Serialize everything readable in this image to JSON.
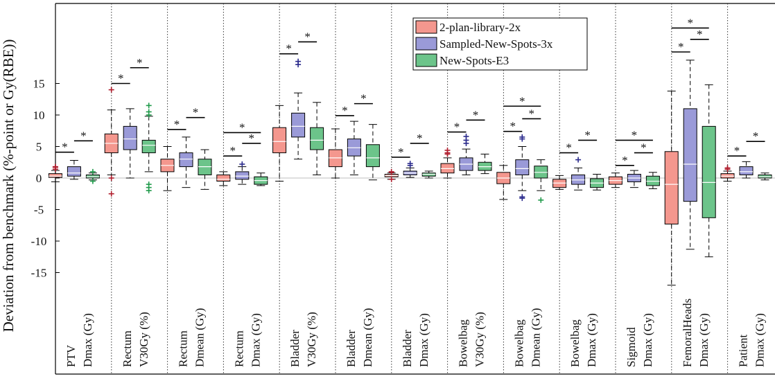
{
  "chart_data": {
    "type": "box",
    "ylabel": "Deviation from benchmark (%-point or Gy(RBE))",
    "y_ticks": [
      15,
      10,
      5,
      0,
      -5,
      -10,
      -15
    ],
    "y_tick_labels": [
      "15",
      "10",
      "5",
      "0",
      "-5",
      "-10",
      "-15"
    ],
    "ylim": [
      -23,
      25.5
    ],
    "grid": false,
    "legend_position": "top-center",
    "series": [
      {
        "name": "2-plan-library-2x",
        "color": "#f4978e"
      },
      {
        "name": "Sampled-New-Spots-3x",
        "color": "#9a9ad8"
      },
      {
        "name": "New-Spots-E3",
        "color": "#6cc48a"
      }
    ],
    "significance_marker": "*",
    "categories": [
      {
        "line1": "PTV",
        "line2": "Dmax (Gy)",
        "boxes": [
          {
            "series": 0,
            "whisker_low": -0.6,
            "q1": 0.1,
            "median": 0.3,
            "q3": 0.7,
            "whisker_high": 1.2,
            "outliers": [
              1.4,
              1.7,
              1.8
            ]
          },
          {
            "series": 1,
            "whisker_low": -0.2,
            "q1": 0.3,
            "median": 0.8,
            "q3": 1.8,
            "whisker_high": 2.8,
            "outliers": []
          },
          {
            "series": 2,
            "whisker_low": -0.3,
            "q1": 0.0,
            "median": 0.2,
            "q3": 0.5,
            "whisker_high": 0.8,
            "outliers": [
              1.0,
              -0.5
            ]
          }
        ],
        "sig": [
          {
            "from": 0,
            "to": 1,
            "y": 4.1
          },
          {
            "from": 1,
            "to": 2,
            "y": 5.9
          }
        ]
      },
      {
        "line1": "Rectum",
        "line2": "V30Gy (%)",
        "boxes": [
          {
            "series": 0,
            "whisker_low": 0.5,
            "q1": 4.0,
            "median": 5.5,
            "q3": 7.0,
            "whisker_high": 10.8,
            "outliers": [
              14.0,
              0.0,
              -2.5
            ]
          },
          {
            "series": 1,
            "whisker_low": 0.0,
            "q1": 4.5,
            "median": 6.2,
            "q3": 8.2,
            "whisker_high": 11.0,
            "outliers": []
          },
          {
            "series": 2,
            "whisker_low": 1.0,
            "q1": 4.0,
            "median": 5.2,
            "q3": 6.0,
            "whisker_high": 9.8,
            "outliers": [
              11.5,
              10.5,
              10.0,
              -1.0,
              -1.5,
              -2.0
            ]
          }
        ],
        "sig": [
          {
            "from": 0,
            "to": 1,
            "y": 15.0
          },
          {
            "from": 1,
            "to": 2,
            "y": 17.5
          }
        ]
      },
      {
        "line1": "Rectum",
        "line2": "Dmean (Gy)",
        "boxes": [
          {
            "series": 0,
            "whisker_low": -2.0,
            "q1": 1.0,
            "median": 2.0,
            "q3": 3.0,
            "whisker_high": 5.0,
            "outliers": []
          },
          {
            "series": 1,
            "whisker_low": -1.5,
            "q1": 1.8,
            "median": 3.0,
            "q3": 4.0,
            "whisker_high": 6.5,
            "outliers": []
          },
          {
            "series": 2,
            "whisker_low": -1.8,
            "q1": 0.5,
            "median": 1.8,
            "q3": 3.0,
            "whisker_high": 4.5,
            "outliers": []
          }
        ],
        "sig": [
          {
            "from": 0,
            "to": 1,
            "y": 7.7
          },
          {
            "from": 1,
            "to": 2,
            "y": 9.6
          }
        ]
      },
      {
        "line1": "Rectum",
        "line2": "Dmax (Gy)",
        "boxes": [
          {
            "series": 0,
            "whisker_low": -1.2,
            "q1": -0.5,
            "median": -0.2,
            "q3": 0.5,
            "whisker_high": 1.0,
            "outliers": []
          },
          {
            "series": 1,
            "whisker_low": -1.0,
            "q1": -0.2,
            "median": 0.3,
            "q3": 1.0,
            "whisker_high": 1.8,
            "outliers": [
              2.2
            ]
          },
          {
            "series": 2,
            "whisker_low": -1.2,
            "q1": -1.0,
            "median": -0.4,
            "q3": 0.2,
            "whisker_high": 0.8,
            "outliers": []
          }
        ],
        "sig": [
          {
            "from": 0,
            "to": 1,
            "y": 3.5
          },
          {
            "from": 1,
            "to": 2,
            "y": 5.5
          },
          {
            "from": 0,
            "to": 2,
            "y": 7.2
          }
        ]
      },
      {
        "line1": "Bladder",
        "line2": "V30Gy (%)",
        "boxes": [
          {
            "series": 0,
            "whisker_low": -0.5,
            "q1": 4.0,
            "median": 5.8,
            "q3": 8.0,
            "whisker_high": 11.5,
            "outliers": []
          },
          {
            "series": 1,
            "whisker_low": 3.0,
            "q1": 6.5,
            "median": 8.2,
            "q3": 10.3,
            "whisker_high": 13.5,
            "outliers": [
              18.0,
              18.5
            ]
          },
          {
            "series": 2,
            "whisker_low": 0.5,
            "q1": 4.5,
            "median": 6.0,
            "q3": 8.0,
            "whisker_high": 12.0,
            "outliers": []
          }
        ],
        "sig": [
          {
            "from": 0,
            "to": 1,
            "y": 19.7
          },
          {
            "from": 1,
            "to": 2,
            "y": 21.6
          }
        ]
      },
      {
        "line1": "Bladder",
        "line2": "Dmean (Gy)",
        "boxes": [
          {
            "series": 0,
            "whisker_low": 0.0,
            "q1": 1.8,
            "median": 3.2,
            "q3": 4.5,
            "whisker_high": 7.8,
            "outliers": []
          },
          {
            "series": 1,
            "whisker_low": 0.5,
            "q1": 3.5,
            "median": 4.8,
            "q3": 6.2,
            "whisker_high": 9.0,
            "outliers": []
          },
          {
            "series": 2,
            "whisker_low": -0.3,
            "q1": 1.8,
            "median": 3.2,
            "q3": 5.3,
            "whisker_high": 8.5,
            "outliers": []
          }
        ],
        "sig": [
          {
            "from": 0,
            "to": 1,
            "y": 9.9
          },
          {
            "from": 1,
            "to": 2,
            "y": 11.8
          }
        ]
      },
      {
        "line1": "Bladder",
        "line2": "Dmax (Gy)",
        "boxes": [
          {
            "series": 0,
            "whisker_low": -0.2,
            "q1": 0.2,
            "median": 0.4,
            "q3": 0.6,
            "whisker_high": 0.8,
            "outliers": [
              1.0,
              0.9,
              -0.2
            ]
          },
          {
            "series": 1,
            "whisker_low": 0.1,
            "q1": 0.5,
            "median": 0.8,
            "q3": 1.1,
            "whisker_high": 1.6,
            "outliers": [
              2.0,
              2.3
            ]
          },
          {
            "series": 2,
            "whisker_low": 0.0,
            "q1": 0.3,
            "median": 0.6,
            "q3": 0.8,
            "whisker_high": 1.1,
            "outliers": []
          }
        ],
        "sig": [
          {
            "from": 0,
            "to": 1,
            "y": 3.3
          },
          {
            "from": 1,
            "to": 2,
            "y": 5.5
          }
        ]
      },
      {
        "line1": "Bowelbag",
        "line2": "V30Gy (%)",
        "boxes": [
          {
            "series": 0,
            "whisker_low": 0.0,
            "q1": 0.8,
            "median": 1.5,
            "q3": 2.3,
            "whisker_high": 3.2,
            "outliers": [
              4.0,
              4.4,
              3.8
            ]
          },
          {
            "series": 1,
            "whisker_low": 0.5,
            "q1": 1.2,
            "median": 2.2,
            "q3": 3.2,
            "whisker_high": 4.6,
            "outliers": [
              5.5,
              6.0,
              6.6
            ]
          },
          {
            "series": 2,
            "whisker_low": 0.7,
            "q1": 1.2,
            "median": 1.8,
            "q3": 2.5,
            "whisker_high": 3.8,
            "outliers": []
          }
        ],
        "sig": [
          {
            "from": 0,
            "to": 1,
            "y": 7.3
          },
          {
            "from": 1,
            "to": 2,
            "y": 9.2
          }
        ]
      },
      {
        "line1": "Bowelbag",
        "line2": "Dmean (Gy)",
        "boxes": [
          {
            "series": 0,
            "whisker_low": -3.4,
            "q1": -0.9,
            "median": 0.0,
            "q3": 0.9,
            "whisker_high": 2.0,
            "outliers": []
          },
          {
            "series": 1,
            "whisker_low": -2.0,
            "q1": 0.5,
            "median": 1.5,
            "q3": 2.9,
            "whisker_high": 5.0,
            "outliers": [
              6.2,
              6.5,
              -3.0,
              -3.2
            ]
          },
          {
            "series": 2,
            "whisker_low": -2.0,
            "q1": 0.0,
            "median": 0.9,
            "q3": 1.9,
            "whisker_high": 2.9,
            "outliers": [
              -3.5
            ]
          }
        ],
        "sig": [
          {
            "from": 0,
            "to": 1,
            "y": 7.4
          },
          {
            "from": 1,
            "to": 2,
            "y": 9.4
          },
          {
            "from": 0,
            "to": 2,
            "y": 11.4
          }
        ]
      },
      {
        "line1": "Bowelbag",
        "line2": "Dmax (Gy)",
        "boxes": [
          {
            "series": 0,
            "whisker_low": -1.8,
            "q1": -1.5,
            "median": -0.8,
            "q3": -0.2,
            "whisker_high": 0.4,
            "outliers": []
          },
          {
            "series": 1,
            "whisker_low": -1.9,
            "q1": -1.0,
            "median": -0.3,
            "q3": 0.5,
            "whisker_high": 1.6,
            "outliers": [
              2.9
            ]
          },
          {
            "series": 2,
            "whisker_low": -1.9,
            "q1": -1.5,
            "median": -0.8,
            "q3": -0.1,
            "whisker_high": 0.6,
            "outliers": []
          }
        ],
        "sig": [
          {
            "from": 0,
            "to": 1,
            "y": 4.0
          },
          {
            "from": 1,
            "to": 2,
            "y": 6.0
          }
        ]
      },
      {
        "line1": "Sigmoid",
        "line2": "Dmax (Gy)",
        "boxes": [
          {
            "series": 0,
            "whisker_low": -1.5,
            "q1": -1.0,
            "median": -0.4,
            "q3": 0.2,
            "whisker_high": 0.8,
            "outliers": []
          },
          {
            "series": 1,
            "whisker_low": -1.5,
            "q1": -0.6,
            "median": 0.0,
            "q3": 0.6,
            "whisker_high": 1.2,
            "outliers": []
          },
          {
            "series": 2,
            "whisker_low": -1.7,
            "q1": -1.2,
            "median": -0.5,
            "q3": 0.3,
            "whisker_high": 0.9,
            "outliers": []
          }
        ],
        "sig": [
          {
            "from": 0,
            "to": 1,
            "y": 2.0
          },
          {
            "from": 1,
            "to": 2,
            "y": 4.0
          },
          {
            "from": 0,
            "to": 2,
            "y": 6.0
          }
        ]
      },
      {
        "line1": "FemoralHeads",
        "line2": "Dmax (Gy)",
        "boxes": [
          {
            "series": 0,
            "whisker_low": -17.0,
            "q1": -7.3,
            "median": -1.0,
            "q3": 4.2,
            "whisker_high": 13.8,
            "outliers": []
          },
          {
            "series": 1,
            "whisker_low": -11.3,
            "q1": -3.7,
            "median": 2.2,
            "q3": 11.0,
            "whisker_high": 18.7,
            "outliers": []
          },
          {
            "series": 2,
            "whisker_low": -12.5,
            "q1": -6.3,
            "median": -0.7,
            "q3": 8.2,
            "whisker_high": 14.8,
            "outliers": []
          }
        ],
        "sig": [
          {
            "from": 0,
            "to": 1,
            "y": 20.0
          },
          {
            "from": 1,
            "to": 2,
            "y": 22.0
          },
          {
            "from": 0,
            "to": 2,
            "y": 23.8
          }
        ]
      },
      {
        "line1": "Patient",
        "line2": "Dmax (Gy)",
        "boxes": [
          {
            "series": 0,
            "whisker_low": -0.5,
            "q1": 0.0,
            "median": 0.3,
            "q3": 0.7,
            "whisker_high": 1.1,
            "outliers": [
              1.4,
              1.6
            ]
          },
          {
            "series": 1,
            "whisker_low": 0.0,
            "q1": 0.5,
            "median": 1.0,
            "q3": 1.8,
            "whisker_high": 2.6,
            "outliers": []
          },
          {
            "series": 2,
            "whisker_low": -0.3,
            "q1": 0.0,
            "median": 0.2,
            "q3": 0.5,
            "whisker_high": 0.8,
            "outliers": []
          }
        ],
        "sig": [
          {
            "from": 0,
            "to": 1,
            "y": 3.5
          },
          {
            "from": 1,
            "to": 2,
            "y": 5.8
          }
        ]
      }
    ]
  }
}
